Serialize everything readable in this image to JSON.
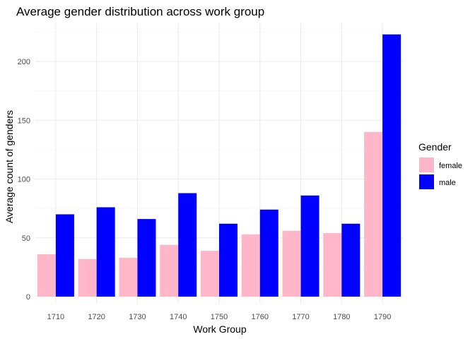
{
  "chart_data": {
    "type": "bar",
    "title": "Average gender distribution across work group",
    "xlabel": "Work Group",
    "ylabel": "Average count of genders",
    "categories": [
      "1710",
      "1720",
      "1730",
      "1740",
      "1750",
      "1760",
      "1770",
      "1780",
      "1790"
    ],
    "series": [
      {
        "name": "female",
        "color": "#ffb6c8",
        "values": [
          36,
          32,
          33,
          44,
          39,
          53,
          56,
          54,
          140
        ]
      },
      {
        "name": "male",
        "color": "#0000ff",
        "values": [
          70,
          76,
          66,
          88,
          62,
          74,
          86,
          62,
          223
        ]
      }
    ],
    "ylim": [
      0,
      230
    ],
    "yticks": [
      0,
      50,
      100,
      150,
      200
    ],
    "grid": true,
    "legend": {
      "title": "Gender",
      "position": "right"
    }
  }
}
